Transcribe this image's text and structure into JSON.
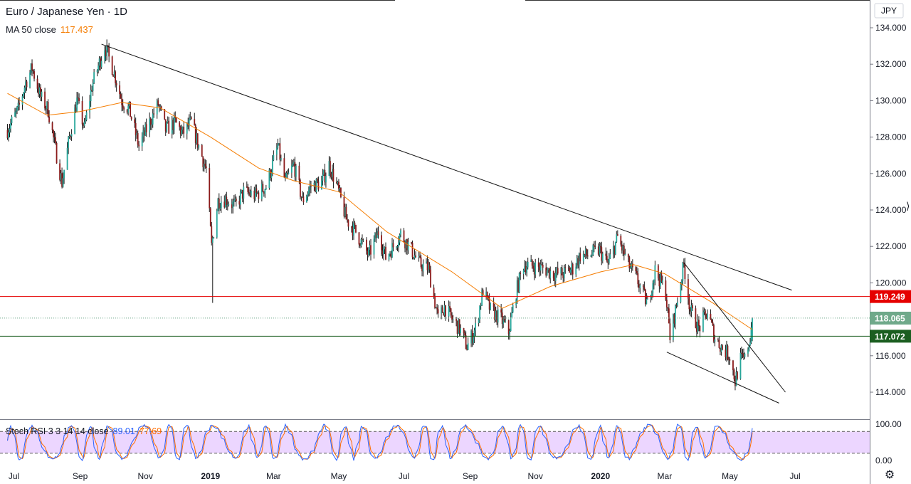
{
  "header": {
    "title": "Euro / Japanese Yen · 1D",
    "ma_label": "MA 50 close",
    "ma_value": "117.437",
    "currency": "JPY"
  },
  "indicator": {
    "label": "Stoch RSI 3 3 14 14 close",
    "k_value": "89.01",
    "d_value": "77.69",
    "k_color": "#2962ff",
    "d_color": "#ff6d00",
    "band_color": "#e6c8ff",
    "upper_band": 80,
    "lower_band": 20,
    "axis_labels": [
      "100.00",
      "0.00"
    ]
  },
  "colors": {
    "up": "#26a69a",
    "down": "#8b1a1a",
    "ma": "#f57c00",
    "resistance": "#e50000",
    "support": "#1b5e20",
    "current": "#6fa98a"
  },
  "chart_data": {
    "type": "candlestick",
    "title": "Euro / Japanese Yen · 1D",
    "x_axis_labels": [
      "Jul",
      "Sep",
      "Nov",
      "2019",
      "Mar",
      "May",
      "Jul",
      "Sep",
      "Nov",
      "2020",
      "Mar",
      "May",
      "Jul"
    ],
    "y_axis_labels": [
      "134.000",
      "132.000",
      "130.000",
      "128.000",
      "126.000",
      "124.000",
      "122.000",
      "120.000",
      "118.000",
      "116.000",
      "114.000"
    ],
    "ylim": [
      113.0,
      134.5
    ],
    "price_path": [
      [
        "2018-06-25",
        128.4
      ],
      [
        "2018-07-05",
        129.5
      ],
      [
        "2018-07-12",
        131.0
      ],
      [
        "2018-07-18",
        131.8
      ],
      [
        "2018-07-26",
        130.2
      ],
      [
        "2018-08-02",
        129.5
      ],
      [
        "2018-08-10",
        127.0
      ],
      [
        "2018-08-15",
        125.5
      ],
      [
        "2018-08-22",
        128.0
      ],
      [
        "2018-08-29",
        130.0
      ],
      [
        "2018-09-05",
        128.5
      ],
      [
        "2018-09-12",
        130.8
      ],
      [
        "2018-09-24",
        133.0
      ],
      [
        "2018-10-03",
        131.5
      ],
      [
        "2018-10-10",
        130.0
      ],
      [
        "2018-10-17",
        129.5
      ],
      [
        "2018-10-26",
        127.5
      ],
      [
        "2018-11-05",
        128.8
      ],
      [
        "2018-11-13",
        129.8
      ],
      [
        "2018-11-20",
        128.4
      ],
      [
        "2018-11-29",
        128.8
      ],
      [
        "2018-12-06",
        128.2
      ],
      [
        "2018-12-14",
        128.8
      ],
      [
        "2018-12-21",
        127.5
      ],
      [
        "2018-12-28",
        126.2
      ],
      [
        "2019-01-02",
        122.0
      ],
      [
        "2019-01-08",
        124.5
      ],
      [
        "2019-01-15",
        124.6
      ],
      [
        "2019-01-24",
        124.2
      ],
      [
        "2019-02-01",
        125.0
      ],
      [
        "2019-02-12",
        124.8
      ],
      [
        "2019-02-22",
        125.3
      ],
      [
        "2019-03-05",
        127.5
      ],
      [
        "2019-03-12",
        125.5
      ],
      [
        "2019-03-20",
        126.5
      ],
      [
        "2019-03-28",
        124.5
      ],
      [
        "2019-04-05",
        125.3
      ],
      [
        "2019-04-15",
        125.5
      ],
      [
        "2019-04-22",
        126.5
      ],
      [
        "2019-04-30",
        125.2
      ],
      [
        "2019-05-08",
        123.5
      ],
      [
        "2019-05-17",
        122.8
      ],
      [
        "2019-05-29",
        121.5
      ],
      [
        "2019-06-07",
        122.8
      ],
      [
        "2019-06-14",
        121.4
      ],
      [
        "2019-06-21",
        122.0
      ],
      [
        "2019-06-28",
        122.7
      ],
      [
        "2019-07-08",
        121.8
      ],
      [
        "2019-07-16",
        121.0
      ],
      [
        "2019-07-24",
        120.8
      ],
      [
        "2019-08-02",
        118.0
      ],
      [
        "2019-08-08",
        118.7
      ],
      [
        "2019-08-15",
        118.0
      ],
      [
        "2019-08-22",
        117.5
      ],
      [
        "2019-08-29",
        116.5
      ],
      [
        "2019-09-06",
        117.5
      ],
      [
        "2019-09-13",
        119.6
      ],
      [
        "2019-09-20",
        118.5
      ],
      [
        "2019-09-30",
        118.0
      ],
      [
        "2019-10-07",
        117.3
      ],
      [
        "2019-10-14",
        119.5
      ],
      [
        "2019-10-21",
        121.0
      ],
      [
        "2019-10-31",
        120.9
      ],
      [
        "2019-11-08",
        120.8
      ],
      [
        "2019-11-18",
        120.5
      ],
      [
        "2019-11-27",
        120.5
      ],
      [
        "2019-12-06",
        120.8
      ],
      [
        "2019-12-13",
        121.5
      ],
      [
        "2019-12-20",
        121.5
      ],
      [
        "2019-12-31",
        121.8
      ],
      [
        "2020-01-08",
        121.0
      ],
      [
        "2020-01-17",
        122.5
      ],
      [
        "2020-01-27",
        121.0
      ],
      [
        "2020-02-04",
        120.2
      ],
      [
        "2020-02-14",
        118.8
      ],
      [
        "2020-02-21",
        120.7
      ],
      [
        "2020-03-02",
        119.5
      ],
      [
        "2020-03-06",
        117.0
      ],
      [
        "2020-03-12",
        118.8
      ],
      [
        "2020-03-19",
        121.0
      ],
      [
        "2020-03-25",
        118.5
      ],
      [
        "2020-04-02",
        117.5
      ],
      [
        "2020-04-10",
        118.4
      ],
      [
        "2020-04-17",
        117.0
      ],
      [
        "2020-04-24",
        116.4
      ],
      [
        "2020-05-01",
        116.0
      ],
      [
        "2020-05-06",
        114.6
      ],
      [
        "2020-05-11",
        115.8
      ],
      [
        "2020-05-15",
        115.8
      ],
      [
        "2020-05-20",
        117.0
      ],
      [
        "2020-05-22",
        118.1
      ]
    ],
    "moving_average": {
      "name": "MA 50 close",
      "last_value": 117.437,
      "path": [
        [
          "2018-06-25",
          130.4
        ],
        [
          "2018-08-01",
          129.2
        ],
        [
          "2018-09-01",
          129.4
        ],
        [
          "2018-10-10",
          129.9
        ],
        [
          "2018-11-15",
          129.6
        ],
        [
          "2019-01-01",
          128.0
        ],
        [
          "2019-02-15",
          126.3
        ],
        [
          "2019-03-20",
          125.6
        ],
        [
          "2019-05-01",
          125.0
        ],
        [
          "2019-06-15",
          122.8
        ],
        [
          "2019-08-15",
          120.6
        ],
        [
          "2019-10-01",
          118.6
        ],
        [
          "2019-11-15",
          119.8
        ],
        [
          "2020-01-01",
          120.6
        ],
        [
          "2020-02-01",
          121.0
        ],
        [
          "2020-03-01",
          120.5
        ],
        [
          "2020-04-15",
          118.9
        ],
        [
          "2020-05-22",
          117.437
        ]
      ]
    },
    "levels": [
      {
        "name": "resistance",
        "value": 119.249,
        "label": "119.249"
      },
      {
        "name": "current",
        "value": 118.065,
        "label": "118.065"
      },
      {
        "name": "support",
        "value": 117.072,
        "label": "117.072"
      }
    ],
    "trendlines": [
      {
        "name": "long-term-downtrend",
        "from": [
          "2018-09-21",
          133.1
        ],
        "to": [
          "2020-06-28",
          119.6
        ]
      },
      {
        "name": "wedge-upper",
        "from": [
          "2020-03-19",
          121.1
        ],
        "to": [
          "2020-06-22",
          114.0
        ]
      },
      {
        "name": "wedge-lower",
        "from": [
          "2020-03-03",
          116.2
        ],
        "to": [
          "2020-06-16",
          113.4
        ]
      }
    ],
    "stoch_rsi": {
      "k_last": 89.01,
      "d_last": 77.69,
      "ylim": [
        0,
        100
      ],
      "bands": [
        20,
        80
      ]
    }
  }
}
